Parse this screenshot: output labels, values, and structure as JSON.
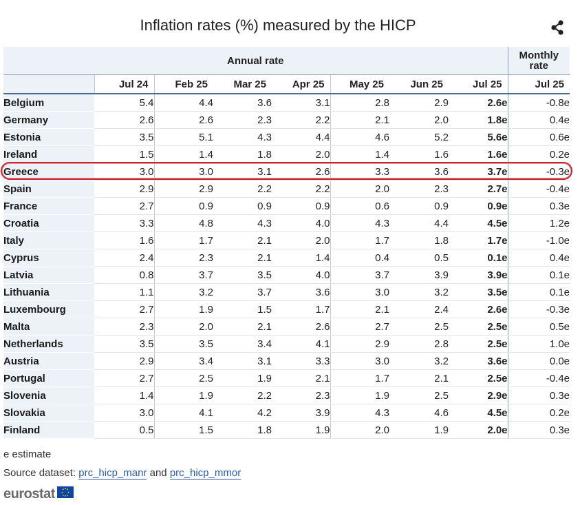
{
  "title": "Inflation rates (%) measured by the HICP",
  "icons": {
    "share": "share-icon",
    "logo_flag": "eu-flag-icon"
  },
  "colors": {
    "header_bg": "#edf2f8",
    "highlight": "#c4262e",
    "link": "#2a5aa8"
  },
  "chart_data": {
    "type": "table",
    "title": "Inflation rates (%) measured by the HICP",
    "group_headers": {
      "annual": "Annual rate",
      "monthly": "Monthly rate"
    },
    "columns": [
      "Jul 24",
      "Feb 25",
      "Mar 25",
      "Apr 25",
      "May 25",
      "Jun 25",
      "Jul 25",
      "Jul 25"
    ],
    "highlighted_row": "Greece",
    "rows": [
      {
        "country": "Belgium",
        "values": [
          "5.4",
          "4.4",
          "3.6",
          "3.1",
          "2.8",
          "2.9",
          "2.6e",
          "-0.8e"
        ]
      },
      {
        "country": "Germany",
        "values": [
          "2.6",
          "2.6",
          "2.3",
          "2.2",
          "2.1",
          "2.0",
          "1.8e",
          "0.4e"
        ]
      },
      {
        "country": "Estonia",
        "values": [
          "3.5",
          "5.1",
          "4.3",
          "4.4",
          "4.6",
          "5.2",
          "5.6e",
          "0.6e"
        ]
      },
      {
        "country": "Ireland",
        "values": [
          "1.5",
          "1.4",
          "1.8",
          "2.0",
          "1.4",
          "1.6",
          "1.6e",
          "0.2e"
        ]
      },
      {
        "country": "Greece",
        "values": [
          "3.0",
          "3.0",
          "3.1",
          "2.6",
          "3.3",
          "3.6",
          "3.7e",
          "-0.3e"
        ]
      },
      {
        "country": "Spain",
        "values": [
          "2.9",
          "2.9",
          "2.2",
          "2.2",
          "2.0",
          "2.3",
          "2.7e",
          "-0.4e"
        ]
      },
      {
        "country": "France",
        "values": [
          "2.7",
          "0.9",
          "0.9",
          "0.9",
          "0.6",
          "0.9",
          "0.9e",
          "0.3e"
        ]
      },
      {
        "country": "Croatia",
        "values": [
          "3.3",
          "4.8",
          "4.3",
          "4.0",
          "4.3",
          "4.4",
          "4.5e",
          "1.2e"
        ]
      },
      {
        "country": "Italy",
        "values": [
          "1.6",
          "1.7",
          "2.1",
          "2.0",
          "1.7",
          "1.8",
          "1.7e",
          "-1.0e"
        ]
      },
      {
        "country": "Cyprus",
        "values": [
          "2.4",
          "2.3",
          "2.1",
          "1.4",
          "0.4",
          "0.5",
          "0.1e",
          "0.4e"
        ]
      },
      {
        "country": "Latvia",
        "values": [
          "0.8",
          "3.7",
          "3.5",
          "4.0",
          "3.7",
          "3.9",
          "3.9e",
          "0.1e"
        ]
      },
      {
        "country": "Lithuania",
        "values": [
          "1.1",
          "3.2",
          "3.7",
          "3.6",
          "3.0",
          "3.2",
          "3.5e",
          "0.1e"
        ]
      },
      {
        "country": "Luxembourg",
        "values": [
          "2.7",
          "1.9",
          "1.5",
          "1.7",
          "2.1",
          "2.4",
          "2.6e",
          "-0.3e"
        ]
      },
      {
        "country": "Malta",
        "values": [
          "2.3",
          "2.0",
          "2.1",
          "2.6",
          "2.7",
          "2.5",
          "2.5e",
          "0.5e"
        ]
      },
      {
        "country": "Netherlands",
        "values": [
          "3.5",
          "3.5",
          "3.4",
          "4.1",
          "2.9",
          "2.8",
          "2.5e",
          "1.0e"
        ]
      },
      {
        "country": "Austria",
        "values": [
          "2.9",
          "3.4",
          "3.1",
          "3.3",
          "3.0",
          "3.2",
          "3.6e",
          "0.0e"
        ]
      },
      {
        "country": "Portugal",
        "values": [
          "2.7",
          "2.5",
          "1.9",
          "2.1",
          "1.7",
          "2.1",
          "2.5e",
          "-0.4e"
        ]
      },
      {
        "country": "Slovenia",
        "values": [
          "1.4",
          "1.9",
          "2.2",
          "2.3",
          "1.9",
          "2.5",
          "2.9e",
          "0.3e"
        ]
      },
      {
        "country": "Slovakia",
        "values": [
          "3.0",
          "4.1",
          "4.2",
          "3.9",
          "4.3",
          "4.6",
          "4.5e",
          "0.2e"
        ]
      },
      {
        "country": "Finland",
        "values": [
          "0.5",
          "1.5",
          "1.8",
          "1.9",
          "2.0",
          "1.9",
          "2.0e",
          "0.3e"
        ]
      }
    ]
  },
  "footer": {
    "note": "e estimate",
    "source_prefix": "Source dataset: ",
    "link1": "prc_hicp_manr",
    "and": " and ",
    "link2": "prc_hicp_mmor",
    "logo_text": "eurostat"
  }
}
